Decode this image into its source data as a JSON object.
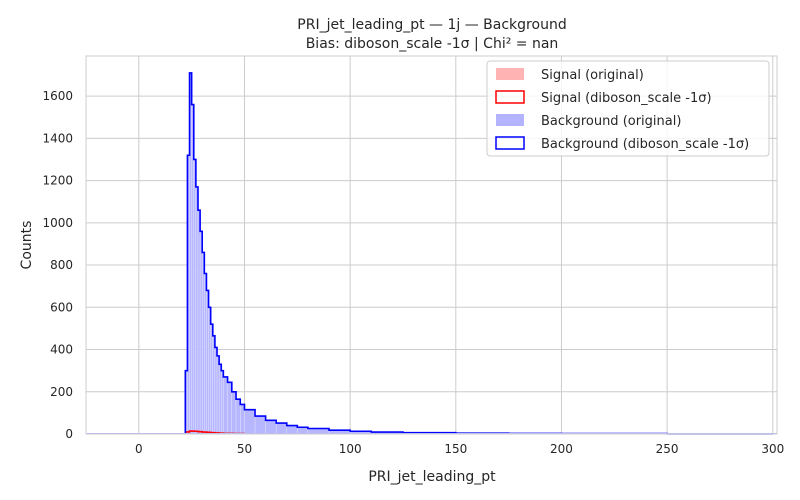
{
  "chart_data": {
    "type": "histogram",
    "title": "PRI_jet_leading_pt — 1j — Background",
    "subtitle": "Bias: diboson_scale -1σ | Chi² = nan",
    "xlabel": "PRI_jet_leading_pt",
    "ylabel": "Counts",
    "xlim": [
      -25,
      302
    ],
    "ylim": [
      0,
      1790
    ],
    "xticks": [
      0,
      50,
      100,
      150,
      200,
      250,
      300
    ],
    "yticks": [
      0,
      200,
      400,
      600,
      800,
      1000,
      1200,
      1400,
      1600
    ],
    "grid": true,
    "legend_position": "top-right",
    "colors": {
      "signal_fill": "#ffb3b3",
      "signal_step": "#ff0000",
      "background_fill": "#b3b3ff",
      "background_step": "#0000ff",
      "grid": "#cccccc",
      "axes_edge": "#cccccc"
    },
    "series": [
      {
        "name": "Signal (original)",
        "style": "fill",
        "color": "#ffb3b3",
        "bin_edges": [
          22,
          24,
          26,
          28,
          30,
          32,
          34,
          36,
          38,
          40,
          45,
          50
        ],
        "values": [
          10,
          14,
          13,
          11,
          9,
          8,
          6,
          5,
          4,
          3,
          2
        ]
      },
      {
        "name": "Signal (diboson_scale -1σ)",
        "style": "step",
        "color": "#ff0000",
        "bin_edges": [
          22,
          24,
          26,
          28,
          30,
          32,
          34,
          36,
          38,
          40,
          45,
          50
        ],
        "values": [
          10,
          14,
          13,
          11,
          9,
          8,
          6,
          5,
          4,
          3,
          2
        ]
      },
      {
        "name": "Background (original)",
        "style": "fill",
        "color": "#b3b3ff",
        "bin_edges": [
          22,
          23,
          24,
          25,
          26,
          27,
          28,
          29,
          30,
          31,
          32,
          33,
          34,
          35,
          36,
          37,
          38,
          39,
          40,
          42,
          44,
          46,
          48,
          50,
          55,
          60,
          65,
          70,
          75,
          80,
          90,
          100,
          110,
          125,
          150,
          175,
          200,
          250,
          300
        ],
        "values": [
          300,
          1320,
          1710,
          1560,
          1300,
          1170,
          1060,
          960,
          860,
          760,
          680,
          600,
          520,
          465,
          410,
          370,
          330,
          300,
          270,
          245,
          200,
          165,
          140,
          115,
          85,
          65,
          52,
          40,
          32,
          26,
          18,
          13,
          9,
          6,
          4,
          3,
          2,
          1
        ]
      },
      {
        "name": "Background (diboson_scale -1σ)",
        "style": "step",
        "color": "#0000ff",
        "bin_edges": [
          22,
          23,
          24,
          25,
          26,
          27,
          28,
          29,
          30,
          31,
          32,
          33,
          34,
          35,
          36,
          37,
          38,
          39,
          40,
          42,
          44,
          46,
          48,
          50,
          55,
          60,
          65,
          70,
          75,
          80,
          90,
          100,
          110,
          125,
          150,
          175,
          200,
          250,
          300
        ],
        "values": [
          300,
          1320,
          1710,
          1560,
          1300,
          1170,
          1060,
          960,
          860,
          760,
          680,
          600,
          520,
          465,
          410,
          370,
          330,
          300,
          270,
          245,
          200,
          165,
          140,
          115,
          85,
          65,
          52,
          40,
          32,
          26,
          18,
          13,
          9,
          6,
          4,
          3,
          2,
          1
        ]
      }
    ]
  }
}
